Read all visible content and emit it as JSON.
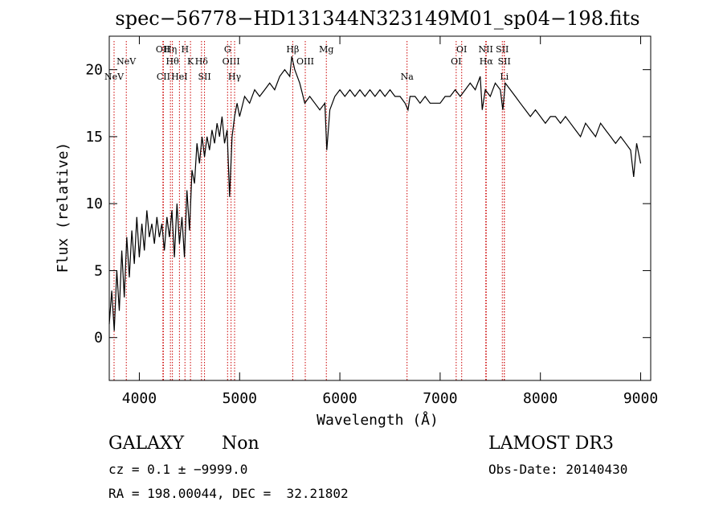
{
  "chart_data": {
    "type": "line",
    "title": "spec−56778−HD131344N323149M01_sp04−198.fits",
    "xlabel": "Wavelength (Å)",
    "ylabel": "Flux (relative)",
    "xlim": [
      3700,
      9100
    ],
    "ylim": [
      -3.2,
      22.5
    ],
    "x_ticks": [
      4000,
      5000,
      6000,
      7000,
      8000,
      9000
    ],
    "y_ticks": [
      0,
      5,
      10,
      15,
      20
    ],
    "grid": false,
    "line_color": "#000000",
    "marker_color": "#cc0000",
    "series": [
      {
        "points": [
          [
            3700,
            1.0
          ],
          [
            3725,
            3.5
          ],
          [
            3750,
            0.5
          ],
          [
            3775,
            5.0
          ],
          [
            3800,
            2.0
          ],
          [
            3825,
            6.5
          ],
          [
            3850,
            3.0
          ],
          [
            3875,
            7.5
          ],
          [
            3900,
            4.5
          ],
          [
            3925,
            8.0
          ],
          [
            3950,
            5.5
          ],
          [
            3975,
            9.0
          ],
          [
            4000,
            6.0
          ],
          [
            4025,
            8.5
          ],
          [
            4050,
            6.5
          ],
          [
            4075,
            9.5
          ],
          [
            4100,
            7.5
          ],
          [
            4125,
            8.5
          ],
          [
            4150,
            7.0
          ],
          [
            4175,
            9.0
          ],
          [
            4200,
            7.5
          ],
          [
            4225,
            8.5
          ],
          [
            4250,
            6.5
          ],
          [
            4275,
            9.0
          ],
          [
            4300,
            7.5
          ],
          [
            4325,
            9.5
          ],
          [
            4350,
            6.0
          ],
          [
            4375,
            10.0
          ],
          [
            4400,
            7.0
          ],
          [
            4425,
            9.0
          ],
          [
            4450,
            6.0
          ],
          [
            4475,
            11.0
          ],
          [
            4500,
            8.0
          ],
          [
            4525,
            12.5
          ],
          [
            4550,
            11.5
          ],
          [
            4575,
            14.5
          ],
          [
            4600,
            13.0
          ],
          [
            4625,
            15.0
          ],
          [
            4650,
            13.5
          ],
          [
            4675,
            15.0
          ],
          [
            4700,
            14.0
          ],
          [
            4725,
            15.5
          ],
          [
            4750,
            14.5
          ],
          [
            4775,
            16.0
          ],
          [
            4800,
            15.0
          ],
          [
            4825,
            16.5
          ],
          [
            4850,
            14.5
          ],
          [
            4875,
            15.5
          ],
          [
            4900,
            10.5
          ],
          [
            4925,
            15.0
          ],
          [
            4950,
            16.5
          ],
          [
            4975,
            17.5
          ],
          [
            5000,
            16.5
          ],
          [
            5050,
            18.0
          ],
          [
            5100,
            17.5
          ],
          [
            5150,
            18.5
          ],
          [
            5200,
            18.0
          ],
          [
            5250,
            18.5
          ],
          [
            5300,
            19.0
          ],
          [
            5350,
            18.5
          ],
          [
            5400,
            19.5
          ],
          [
            5450,
            20.0
          ],
          [
            5500,
            19.5
          ],
          [
            5520,
            21.0
          ],
          [
            5550,
            20.0
          ],
          [
            5600,
            19.0
          ],
          [
            5650,
            17.5
          ],
          [
            5700,
            18.0
          ],
          [
            5750,
            17.5
          ],
          [
            5800,
            17.0
          ],
          [
            5850,
            17.5
          ],
          [
            5870,
            14.0
          ],
          [
            5900,
            17.0
          ],
          [
            5950,
            18.0
          ],
          [
            6000,
            18.5
          ],
          [
            6050,
            18.0
          ],
          [
            6100,
            18.5
          ],
          [
            6150,
            18.0
          ],
          [
            6200,
            18.5
          ],
          [
            6250,
            18.0
          ],
          [
            6300,
            18.5
          ],
          [
            6350,
            18.0
          ],
          [
            6400,
            18.5
          ],
          [
            6450,
            18.0
          ],
          [
            6500,
            18.5
          ],
          [
            6550,
            18.0
          ],
          [
            6600,
            18.0
          ],
          [
            6650,
            17.5
          ],
          [
            6680,
            17.0
          ],
          [
            6700,
            18.0
          ],
          [
            6750,
            18.0
          ],
          [
            6800,
            17.5
          ],
          [
            6850,
            18.0
          ],
          [
            6900,
            17.5
          ],
          [
            6950,
            17.5
          ],
          [
            7000,
            17.5
          ],
          [
            7050,
            18.0
          ],
          [
            7100,
            18.0
          ],
          [
            7150,
            18.5
          ],
          [
            7200,
            18.0
          ],
          [
            7250,
            18.5
          ],
          [
            7300,
            19.0
          ],
          [
            7350,
            18.5
          ],
          [
            7400,
            19.5
          ],
          [
            7420,
            17.0
          ],
          [
            7450,
            18.5
          ],
          [
            7500,
            18.0
          ],
          [
            7550,
            19.0
          ],
          [
            7600,
            18.5
          ],
          [
            7625,
            17.0
          ],
          [
            7650,
            19.0
          ],
          [
            7700,
            18.5
          ],
          [
            7750,
            18.0
          ],
          [
            7800,
            17.5
          ],
          [
            7850,
            17.0
          ],
          [
            7900,
            16.5
          ],
          [
            7950,
            17.0
          ],
          [
            8000,
            16.5
          ],
          [
            8050,
            16.0
          ],
          [
            8100,
            16.5
          ],
          [
            8150,
            16.5
          ],
          [
            8200,
            16.0
          ],
          [
            8250,
            16.5
          ],
          [
            8300,
            16.0
          ],
          [
            8350,
            15.5
          ],
          [
            8400,
            15.0
          ],
          [
            8450,
            16.0
          ],
          [
            8500,
            15.5
          ],
          [
            8550,
            15.0
          ],
          [
            8600,
            16.0
          ],
          [
            8650,
            15.5
          ],
          [
            8700,
            15.0
          ],
          [
            8750,
            14.5
          ],
          [
            8800,
            15.0
          ],
          [
            8850,
            14.5
          ],
          [
            8900,
            14.0
          ],
          [
            8930,
            12.0
          ],
          [
            8960,
            14.5
          ],
          [
            9000,
            13.0
          ]
        ]
      }
    ],
    "lines": [
      {
        "name": "NeV",
        "wave": 3748,
        "row": 1
      },
      {
        "name": "NeV",
        "wave": 3870,
        "row": 0
      },
      {
        "name": "OII",
        "wave": 4235,
        "row": 2
      },
      {
        "name": "CII",
        "wave": 4240,
        "row": 1
      },
      {
        "name": "Hη",
        "wave": 4310,
        "row": 2
      },
      {
        "name": "Hθ",
        "wave": 4330,
        "row": 0
      },
      {
        "name": "HeI",
        "wave": 4400,
        "row": 1
      },
      {
        "name": "H",
        "wave": 4455,
        "row": 2
      },
      {
        "name": "K",
        "wave": 4510,
        "row": 0
      },
      {
        "name": "Hδ",
        "wave": 4620,
        "row": 0
      },
      {
        "name": "SII",
        "wave": 4650,
        "row": 1
      },
      {
        "name": "G",
        "wave": 4880,
        "row": 2
      },
      {
        "name": "OIII",
        "wave": 4915,
        "row": 0
      },
      {
        "name": "Hγ",
        "wave": 4950,
        "row": 1
      },
      {
        "name": "Hβ",
        "wave": 5530,
        "row": 2
      },
      {
        "name": "OIII",
        "wave": 5655,
        "row": 0
      },
      {
        "name": "Mg",
        "wave": 5865,
        "row": 2
      },
      {
        "name": "Na",
        "wave": 6670,
        "row": 1
      },
      {
        "name": "OI",
        "wave": 7160,
        "row": 0
      },
      {
        "name": "OI",
        "wave": 7215,
        "row": 2
      },
      {
        "name": "NII",
        "wave": 7455,
        "row": 2
      },
      {
        "name": "Hα",
        "wave": 7460,
        "row": 0
      },
      {
        "name": "SII",
        "wave": 7620,
        "row": 2
      },
      {
        "name": "SII",
        "wave": 7640,
        "row": 0
      },
      {
        "name": "Li",
        "wave": 7640,
        "row": 1
      }
    ]
  },
  "info": {
    "object_class": "GALAXY",
    "subclass": "Non",
    "survey": "LAMOST DR3",
    "cz": "cz = 0.1 ± −9999.0",
    "obs_date": "Obs-Date: 20140430",
    "coords": "RA = 198.00044, DEC =  32.21802"
  }
}
